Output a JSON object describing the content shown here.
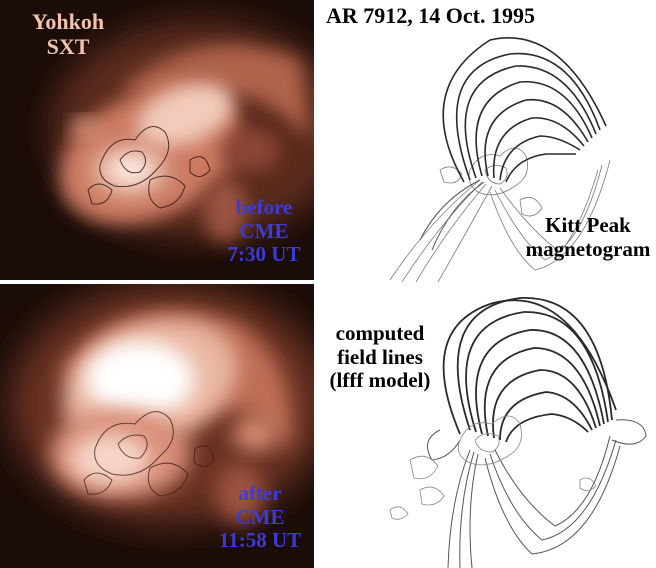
{
  "figure": {
    "title": "AR 7912, 14 Oct. 1995",
    "top_left": {
      "label_line1": "Yohkoh",
      "label_line2": "SXT",
      "time_line1": "before",
      "time_line2": "CME",
      "time_line3": "7:30 UT"
    },
    "bottom_left": {
      "time_line1": "after",
      "time_line2": "CME",
      "time_line3": "11:58 UT"
    },
    "top_right": {
      "label_line1": "Kitt Peak",
      "label_line2": "magnetogram"
    },
    "bottom_right": {
      "label_line1": "computed",
      "label_line2": "field lines",
      "label_line3": "(lfff model)"
    },
    "colors": {
      "xray_dark": "#1a0c08",
      "xray_bright": "#ffffff",
      "xray_mid": "#d8826a",
      "time_text": "#3b3bd8",
      "label_text": "#f2c1b0"
    }
  }
}
